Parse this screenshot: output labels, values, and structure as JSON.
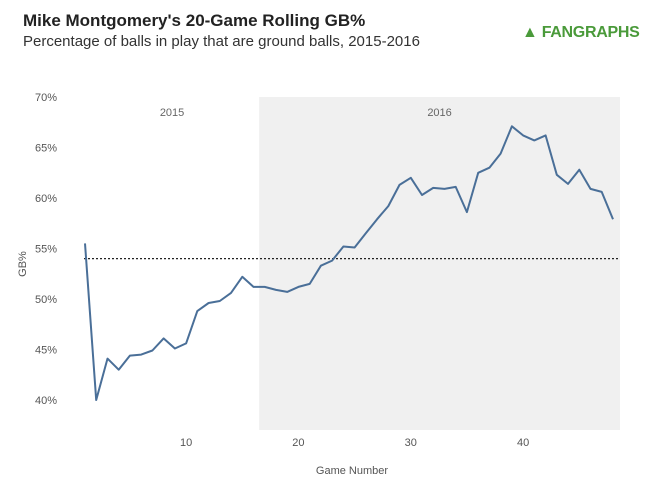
{
  "header": {
    "title": "Mike Montgomery's 20-Game Rolling GB%",
    "subtitle": "Percentage of balls in play that are ground balls, 2015-2016",
    "logo": "FANGRAPHS"
  },
  "colors": {
    "line": "#4a6f98",
    "shade": "#f0f0f0",
    "reference": "#222222"
  },
  "chart_data": {
    "type": "line",
    "title": "Mike Montgomery's 20-Game Rolling GB%",
    "xlabel": "Game Number",
    "ylabel": "GB%",
    "xlim": [
      1,
      48
    ],
    "ylim": [
      37,
      70
    ],
    "xticks": [
      10,
      20,
      30,
      40
    ],
    "yticks": [
      40,
      45,
      50,
      55,
      60,
      65,
      70
    ],
    "ytick_labels": [
      "40%",
      "45%",
      "50%",
      "55%",
      "60%",
      "65%",
      "70%"
    ],
    "reference_line": 54.0,
    "regions": [
      {
        "label": "2015",
        "from": 1,
        "to": 16.5
      },
      {
        "label": "2016",
        "from": 16.5,
        "to": 48,
        "shaded": true
      }
    ],
    "x": [
      1,
      2,
      3,
      4,
      5,
      6,
      7,
      8,
      9,
      10,
      11,
      12,
      13,
      14,
      15,
      16,
      17,
      18,
      19,
      20,
      21,
      22,
      23,
      24,
      25,
      26,
      27,
      28,
      29,
      30,
      31,
      32,
      33,
      34,
      35,
      36,
      37,
      38,
      39,
      40,
      41,
      42,
      43,
      44,
      45,
      46,
      47,
      48
    ],
    "values": [
      55.5,
      40.0,
      44.1,
      43.0,
      44.4,
      44.5,
      44.9,
      46.1,
      45.1,
      45.6,
      48.8,
      49.6,
      49.8,
      50.6,
      52.2,
      51.2,
      51.2,
      50.9,
      50.7,
      51.2,
      51.5,
      53.3,
      53.8,
      55.2,
      55.1,
      56.5,
      57.9,
      59.2,
      61.3,
      62.0,
      60.3,
      61.0,
      60.9,
      61.1,
      58.6,
      62.5,
      63.0,
      64.4,
      67.1,
      66.2,
      65.7,
      66.2,
      62.3,
      61.4,
      62.8,
      60.9,
      60.6,
      57.9
    ]
  }
}
